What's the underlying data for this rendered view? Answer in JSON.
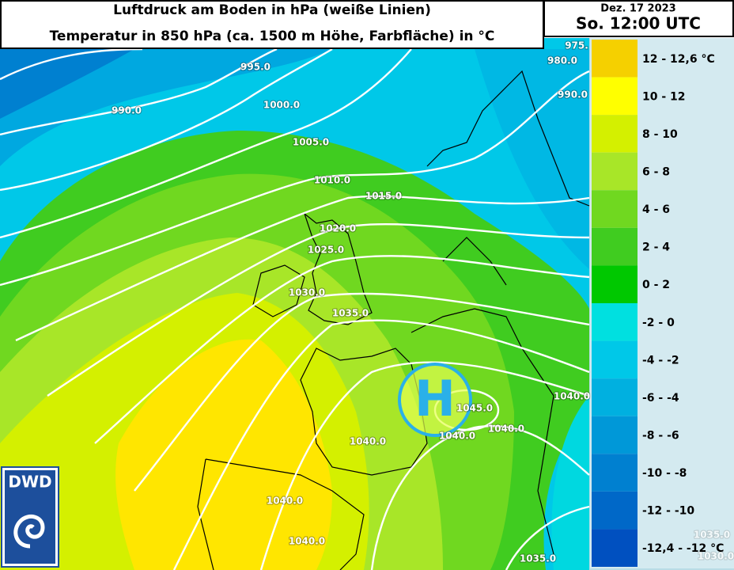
{
  "header": {
    "title_line1": "Luftdruck am Boden in hPa (weiße Linien)",
    "title_line2": "Temperatur in 850 hPa (ca. 1500 m Höhe, Farbfläche) in °C",
    "date": "Dez. 17 2023",
    "time": "So. 12:00 UTC"
  },
  "legend": [
    {
      "label": "12 - 12,6 °C",
      "color": "#f5d000"
    },
    {
      "label": "10 - 12",
      "color": "#ffff00"
    },
    {
      "label": "8 - 10",
      "color": "#d4f000"
    },
    {
      "label": "6 - 8",
      "color": "#a8e628"
    },
    {
      "label": "4 - 6",
      "color": "#70d820"
    },
    {
      "label": "2 - 4",
      "color": "#40cc20"
    },
    {
      "label": "0 - 2",
      "color": "#00c800"
    },
    {
      "label": "-2 - 0",
      "color": "#00e0e0"
    },
    {
      "label": "-4 - -2",
      "color": "#00c8e8"
    },
    {
      "label": "-6 - -4",
      "color": "#00b0e0"
    },
    {
      "label": "-8 - -6",
      "color": "#0098d8"
    },
    {
      "label": "-10 - -8",
      "color": "#0080d0"
    },
    {
      "label": "-12 - -10",
      "color": "#0068c8"
    },
    {
      "label": "-12,4 - -12 °C",
      "color": "#0050c0"
    }
  ],
  "isobar_labels": [
    "995.0",
    "990.0",
    "1000.0",
    "1005.0",
    "1010.0",
    "1015.0",
    "1020.0",
    "1025.0",
    "1030.0",
    "1035.0",
    "975.",
    "980.0",
    "990.0",
    "1040.0",
    "1045.0",
    "1040.0",
    "1040.0",
    "1040.0",
    "1040.0",
    "1040.0",
    "1035.0",
    "1035.0",
    "1030.0"
  ],
  "high_label": "H",
  "logo": "DWD"
}
